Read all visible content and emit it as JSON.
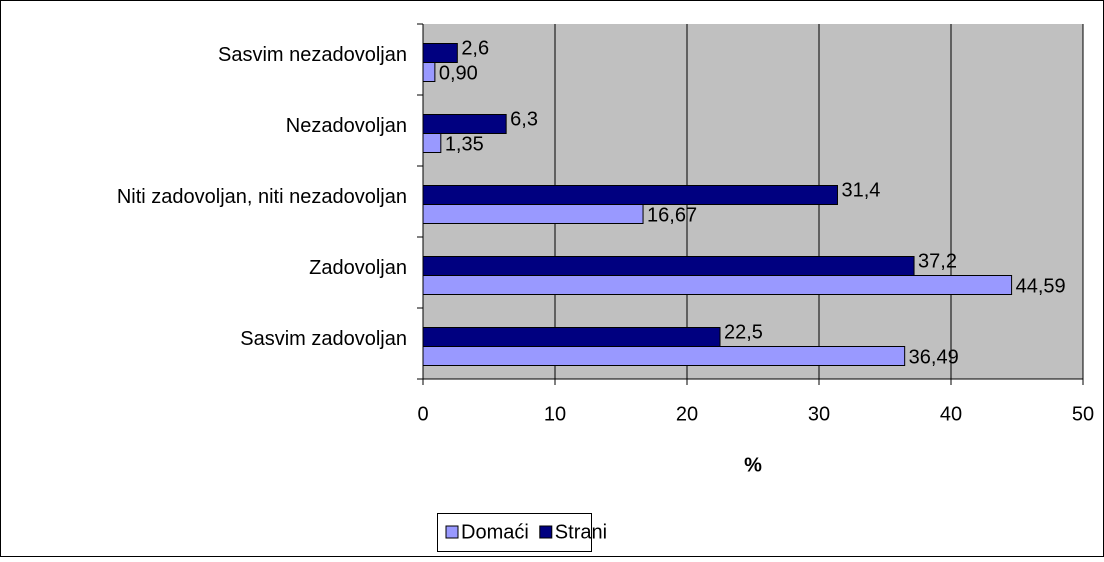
{
  "chart_data": {
    "type": "hbar",
    "categories": [
      "Sasvim nezadovoljan",
      "Nezadovoljan",
      "Niti zadovoljan, niti nezadovoljan",
      "Zadovoljan",
      "Sasvim zadovoljan"
    ],
    "series": [
      {
        "name": "Strani",
        "color": "#000080",
        "values": [
          2.6,
          6.3,
          31.4,
          37.2,
          22.5
        ],
        "value_labels": [
          "2,6",
          "6,3",
          "31,4",
          "37,2",
          "22,5"
        ]
      },
      {
        "name": "Domaći",
        "color": "#9999ff",
        "values": [
          0.9,
          1.35,
          16.67,
          44.59,
          36.49
        ],
        "value_labels": [
          "0,90",
          "1,35",
          "16,67",
          "44,59",
          "36,49"
        ]
      }
    ],
    "xlabel": "%",
    "xlim": [
      0,
      50
    ],
    "xticks": [
      0,
      10,
      20,
      30,
      40,
      50
    ],
    "grid": true,
    "legend": "bottom"
  }
}
